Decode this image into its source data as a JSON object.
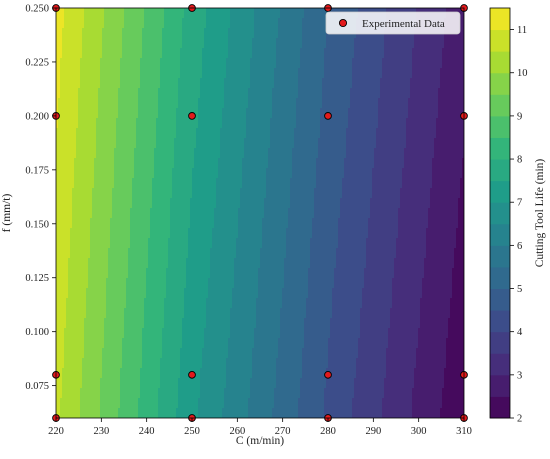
{
  "chart_data": {
    "type": "heatmap",
    "subtype": "filled-contour",
    "colormap": "viridis",
    "title": "",
    "xlabel": "C (m/min)",
    "ylabel": "f (mm/t)",
    "xlim": [
      220,
      310
    ],
    "ylim": [
      0.06,
      0.25
    ],
    "x_ticks": [
      220,
      230,
      240,
      250,
      260,
      270,
      280,
      290,
      300,
      310
    ],
    "y_ticks": [
      0.075,
      0.1,
      0.125,
      0.15,
      0.175,
      0.2,
      0.225,
      0.25
    ],
    "x_tick_labels": [
      "220",
      "230",
      "240",
      "250",
      "260",
      "270",
      "280",
      "290",
      "300",
      "310"
    ],
    "y_tick_labels": [
      "0.075",
      "0.100",
      "0.125",
      "0.150",
      "0.175",
      "0.200",
      "0.225",
      "0.250"
    ],
    "colorbar": {
      "label": "Cutting Tool Life (min)",
      "range": [
        2,
        11.5
      ],
      "ticks": [
        2,
        3,
        4,
        5,
        6,
        7,
        8,
        9,
        10,
        11
      ],
      "tick_labels": [
        "2",
        "3",
        "4",
        "5",
        "6",
        "7",
        "8",
        "9",
        "10",
        "11"
      ],
      "levels": 19
    },
    "field_samples": [
      {
        "x": 220,
        "y": 0.06,
        "z": 10.6
      },
      {
        "x": 220,
        "y": 0.25,
        "z": 11.2
      },
      {
        "x": 250,
        "y": 0.06,
        "z": 7.1
      },
      {
        "x": 250,
        "y": 0.25,
        "z": 7.8
      },
      {
        "x": 280,
        "y": 0.06,
        "z": 4.4
      },
      {
        "x": 280,
        "y": 0.25,
        "z": 5.0
      },
      {
        "x": 310,
        "y": 0.06,
        "z": 2.1
      },
      {
        "x": 310,
        "y": 0.25,
        "z": 2.7
      }
    ],
    "series": [
      {
        "name": "Experimental Data",
        "type": "scatter",
        "color": "#e31a1c",
        "points": [
          {
            "x": 220,
            "y": 0.06
          },
          {
            "x": 220,
            "y": 0.08
          },
          {
            "x": 220,
            "y": 0.2
          },
          {
            "x": 220,
            "y": 0.25
          },
          {
            "x": 250,
            "y": 0.06
          },
          {
            "x": 250,
            "y": 0.08
          },
          {
            "x": 250,
            "y": 0.2
          },
          {
            "x": 250,
            "y": 0.25
          },
          {
            "x": 280,
            "y": 0.06
          },
          {
            "x": 280,
            "y": 0.08
          },
          {
            "x": 280,
            "y": 0.2
          },
          {
            "x": 280,
            "y": 0.25
          },
          {
            "x": 310,
            "y": 0.06
          },
          {
            "x": 310,
            "y": 0.08
          },
          {
            "x": 310,
            "y": 0.2
          },
          {
            "x": 310,
            "y": 0.25
          }
        ]
      }
    ],
    "legend": {
      "position": "top-right",
      "entries": [
        "Experimental Data"
      ]
    },
    "grid": false
  }
}
